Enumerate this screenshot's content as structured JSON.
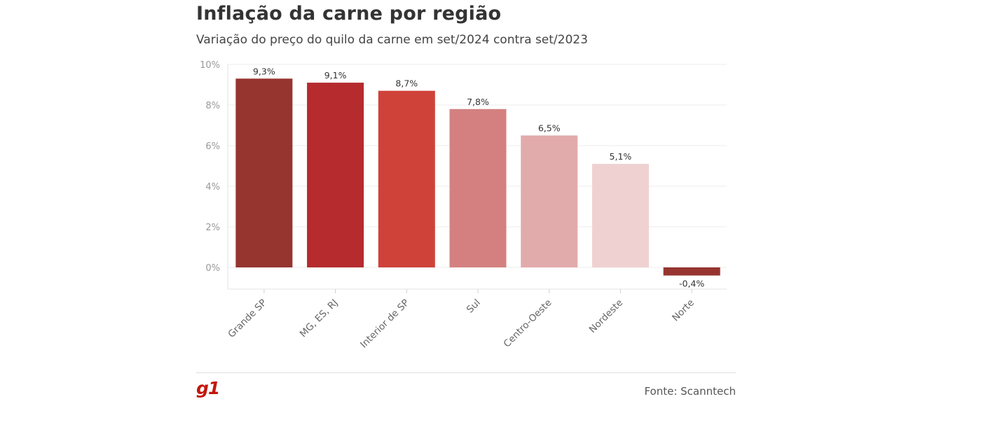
{
  "header": {
    "title": "Inflação da carne por região",
    "subtitle": "Variação do preço do quilo da carne em set/2024 contra set/2023"
  },
  "footer": {
    "logo": "g1",
    "source": "Fonte: Scanntech"
  },
  "chart_data": {
    "type": "bar",
    "categories": [
      "Grande SP",
      "MG, ES, RJ",
      "Interior de SP",
      "Sul",
      "Centro-Oeste",
      "Nordeste",
      "Norte"
    ],
    "values": [
      9.3,
      9.1,
      8.7,
      7.8,
      6.5,
      5.1,
      -0.4
    ],
    "value_labels": [
      "9,3%",
      "9,1%",
      "8,7%",
      "7,8%",
      "6,5%",
      "5,1%",
      "-0,4%"
    ],
    "colors": [
      "#963530",
      "#b52b2e",
      "#cf423a",
      "#d48080",
      "#e2abab",
      "#f0d1d1",
      "#963530"
    ],
    "ylim": [
      -1,
      10
    ],
    "yticks": [
      0,
      2,
      4,
      6,
      8,
      10
    ],
    "ytick_labels": [
      "0%",
      "2%",
      "4%",
      "6%",
      "8%",
      "10%"
    ],
    "grid": true,
    "legend": "none"
  }
}
